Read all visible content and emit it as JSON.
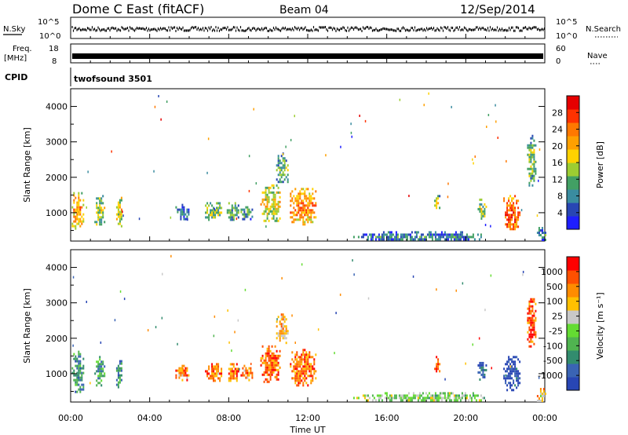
{
  "header": {
    "title": "Dome C East (fitACF)",
    "beam": "Beam 04",
    "date": "12/Sep/2014"
  },
  "top_panels": {
    "nsky": {
      "label": "N.Sky",
      "ticks": [
        "10^5",
        "10^0"
      ],
      "right_label": "N.Search",
      "right_ticks": [
        "10^5",
        "10^0"
      ]
    },
    "freq": {
      "label_line1": "Freq.",
      "label_line2": "[MHz]",
      "ticks": [
        "18",
        "8"
      ],
      "right_label": "Nave",
      "right_ticks": [
        "60",
        "0"
      ]
    },
    "cpid": {
      "label": "CPID",
      "value": "twofsound 3501"
    }
  },
  "xaxis": {
    "label": "Time UT",
    "ticks": [
      "00:00",
      "04:00",
      "08:00",
      "12:00",
      "16:00",
      "20:00",
      "00:00"
    ],
    "range_hours": [
      0,
      24
    ]
  },
  "chart_data": [
    {
      "type": "heatmap",
      "quantity": "power",
      "ylabel": "Slant Range [km]",
      "yticks": [
        "4000",
        "3000",
        "2000",
        "1000"
      ],
      "ylim": [
        200,
        4500
      ],
      "colorbar": {
        "label": "Power [dB]",
        "ticks": [
          "28",
          "24",
          "20",
          "16",
          "12",
          "8",
          "4"
        ],
        "range": [
          0,
          32
        ],
        "colors": [
          "#1e1eff",
          "#2846b4",
          "#3a8ca0",
          "#42a064",
          "#9ccd32",
          "#ffd200",
          "#ffa000",
          "#ff7800",
          "#ff3200",
          "#e60000"
        ]
      },
      "clusters": [
        {
          "t": [
            0.05,
            0.65
          ],
          "r": [
            500,
            1650
          ],
          "level": 0.55
        },
        {
          "t": [
            1.2,
            1.7
          ],
          "r": [
            650,
            1500
          ],
          "level": 0.35
        },
        {
          "t": [
            2.3,
            2.6
          ],
          "r": [
            650,
            1450
          ],
          "level": 0.45
        },
        {
          "t": [
            5.3,
            6.0
          ],
          "r": [
            850,
            1250
          ],
          "level": 0.15
        },
        {
          "t": [
            6.8,
            7.6
          ],
          "r": [
            800,
            1300
          ],
          "level": 0.3
        },
        {
          "t": [
            7.9,
            8.5
          ],
          "r": [
            800,
            1300
          ],
          "level": 0.25
        },
        {
          "t": [
            8.6,
            9.2
          ],
          "r": [
            850,
            1250
          ],
          "level": 0.2
        },
        {
          "t": [
            9.6,
            10.6
          ],
          "r": [
            750,
            1800
          ],
          "level": 0.45
        },
        {
          "t": [
            10.4,
            11.0
          ],
          "r": [
            1850,
            2700
          ],
          "level": 0.25
        },
        {
          "t": [
            11.1,
            12.4
          ],
          "r": [
            650,
            1700
          ],
          "level": 0.6
        },
        {
          "t": [
            14.3,
            21.0
          ],
          "r": [
            230,
            480
          ],
          "level": 0.15
        },
        {
          "t": [
            18.4,
            18.7
          ],
          "r": [
            1050,
            1500
          ],
          "level": 0.35
        },
        {
          "t": [
            20.6,
            21.0
          ],
          "r": [
            850,
            1400
          ],
          "level": 0.35
        },
        {
          "t": [
            21.9,
            22.7
          ],
          "r": [
            550,
            1500
          ],
          "level": 0.7
        },
        {
          "t": [
            23.1,
            23.5
          ],
          "r": [
            1800,
            3200
          ],
          "level": 0.3
        },
        {
          "t": [
            23.6,
            24.0
          ],
          "r": [
            230,
            600
          ],
          "level": 0.2
        }
      ]
    },
    {
      "type": "heatmap",
      "quantity": "velocity",
      "ylabel": "Slant Range [km]",
      "yticks": [
        "4000",
        "3000",
        "2000",
        "1000"
      ],
      "ylim": [
        200,
        4500
      ],
      "colorbar": {
        "label": "Velocity [m s⁻¹]",
        "ticks": [
          "1000",
          "500",
          "100",
          "25",
          "-25",
          "-100",
          "-500",
          "-1000"
        ],
        "colors": [
          "#2846b4",
          "#3a64b4",
          "#328c6e",
          "#50b450",
          "#64dc32",
          "#c8c8c8",
          "#ffc000",
          "#ff8c00",
          "#ff5000",
          "#ff0000"
        ]
      },
      "clusters": [
        {
          "t": [
            0.05,
            0.65
          ],
          "r": [
            500,
            1650
          ],
          "level": 0.25
        },
        {
          "t": [
            1.2,
            1.7
          ],
          "r": [
            650,
            1500
          ],
          "level": 0.3
        },
        {
          "t": [
            2.3,
            2.6
          ],
          "r": [
            650,
            1450
          ],
          "level": 0.25
        },
        {
          "t": [
            5.3,
            6.0
          ],
          "r": [
            850,
            1250
          ],
          "level": 0.75
        },
        {
          "t": [
            6.8,
            7.6
          ],
          "r": [
            800,
            1300
          ],
          "level": 0.75
        },
        {
          "t": [
            7.9,
            8.5
          ],
          "r": [
            800,
            1300
          ],
          "level": 0.78
        },
        {
          "t": [
            8.6,
            9.2
          ],
          "r": [
            850,
            1250
          ],
          "level": 0.75
        },
        {
          "t": [
            9.6,
            10.6
          ],
          "r": [
            750,
            1800
          ],
          "level": 0.8
        },
        {
          "t": [
            10.4,
            11.0
          ],
          "r": [
            1850,
            2700
          ],
          "level": 0.7
        },
        {
          "t": [
            11.1,
            12.4
          ],
          "r": [
            650,
            1700
          ],
          "level": 0.8
        },
        {
          "t": [
            14.3,
            21.0
          ],
          "r": [
            230,
            480
          ],
          "level": 0.45
        },
        {
          "t": [
            18.4,
            18.7
          ],
          "r": [
            1050,
            1500
          ],
          "level": 0.9
        },
        {
          "t": [
            20.6,
            21.0
          ],
          "r": [
            850,
            1400
          ],
          "level": 0.1
        },
        {
          "t": [
            21.9,
            22.7
          ],
          "r": [
            550,
            1500
          ],
          "level": 0.05
        },
        {
          "t": [
            23.1,
            23.5
          ],
          "r": [
            1800,
            3200
          ],
          "level": 0.85
        },
        {
          "t": [
            23.6,
            24.0
          ],
          "r": [
            230,
            600
          ],
          "level": 0.65
        }
      ]
    }
  ]
}
